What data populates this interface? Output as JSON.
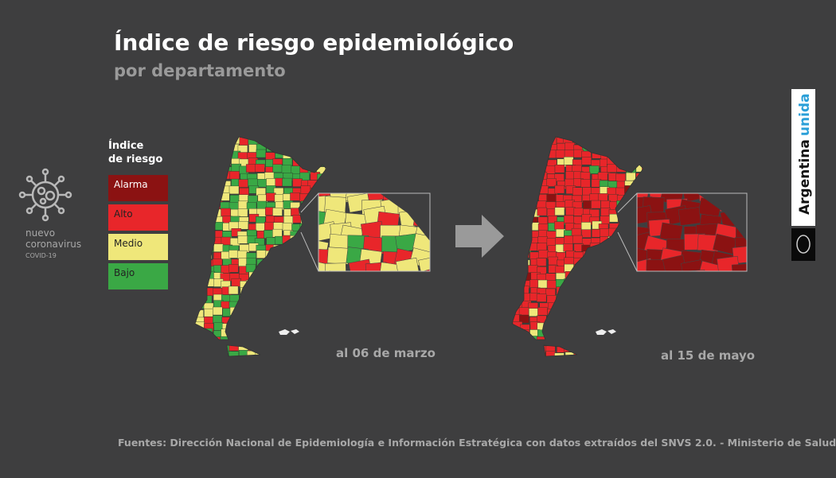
{
  "header": {
    "title": "Índice de riesgo epidemiológico",
    "subtitle": "por departamento"
  },
  "legend": {
    "title_lines": [
      "Índice",
      "de riesgo"
    ],
    "items": [
      {
        "label": "Alarma",
        "color": "#8b1212"
      },
      {
        "label": "Alto",
        "color": "#e8262a"
      },
      {
        "label": "Medio",
        "color": "#efe77a"
      },
      {
        "label": "Bajo",
        "color": "#3aa845"
      }
    ]
  },
  "badge": {
    "lines": [
      "nuevo",
      "coronavirus",
      "COVID-19"
    ]
  },
  "maps": [
    {
      "date_label": "al 06 de marzo"
    },
    {
      "date_label": "al 15 de mayo"
    }
  ],
  "brand": {
    "word1": "Argentina",
    "word2": "unida"
  },
  "footer": "Fuentes: Dirección Nacional de Epidemiología e Información Estratégica con datos extraídos del SNVS 2.0. - Ministerio de Salud."
}
